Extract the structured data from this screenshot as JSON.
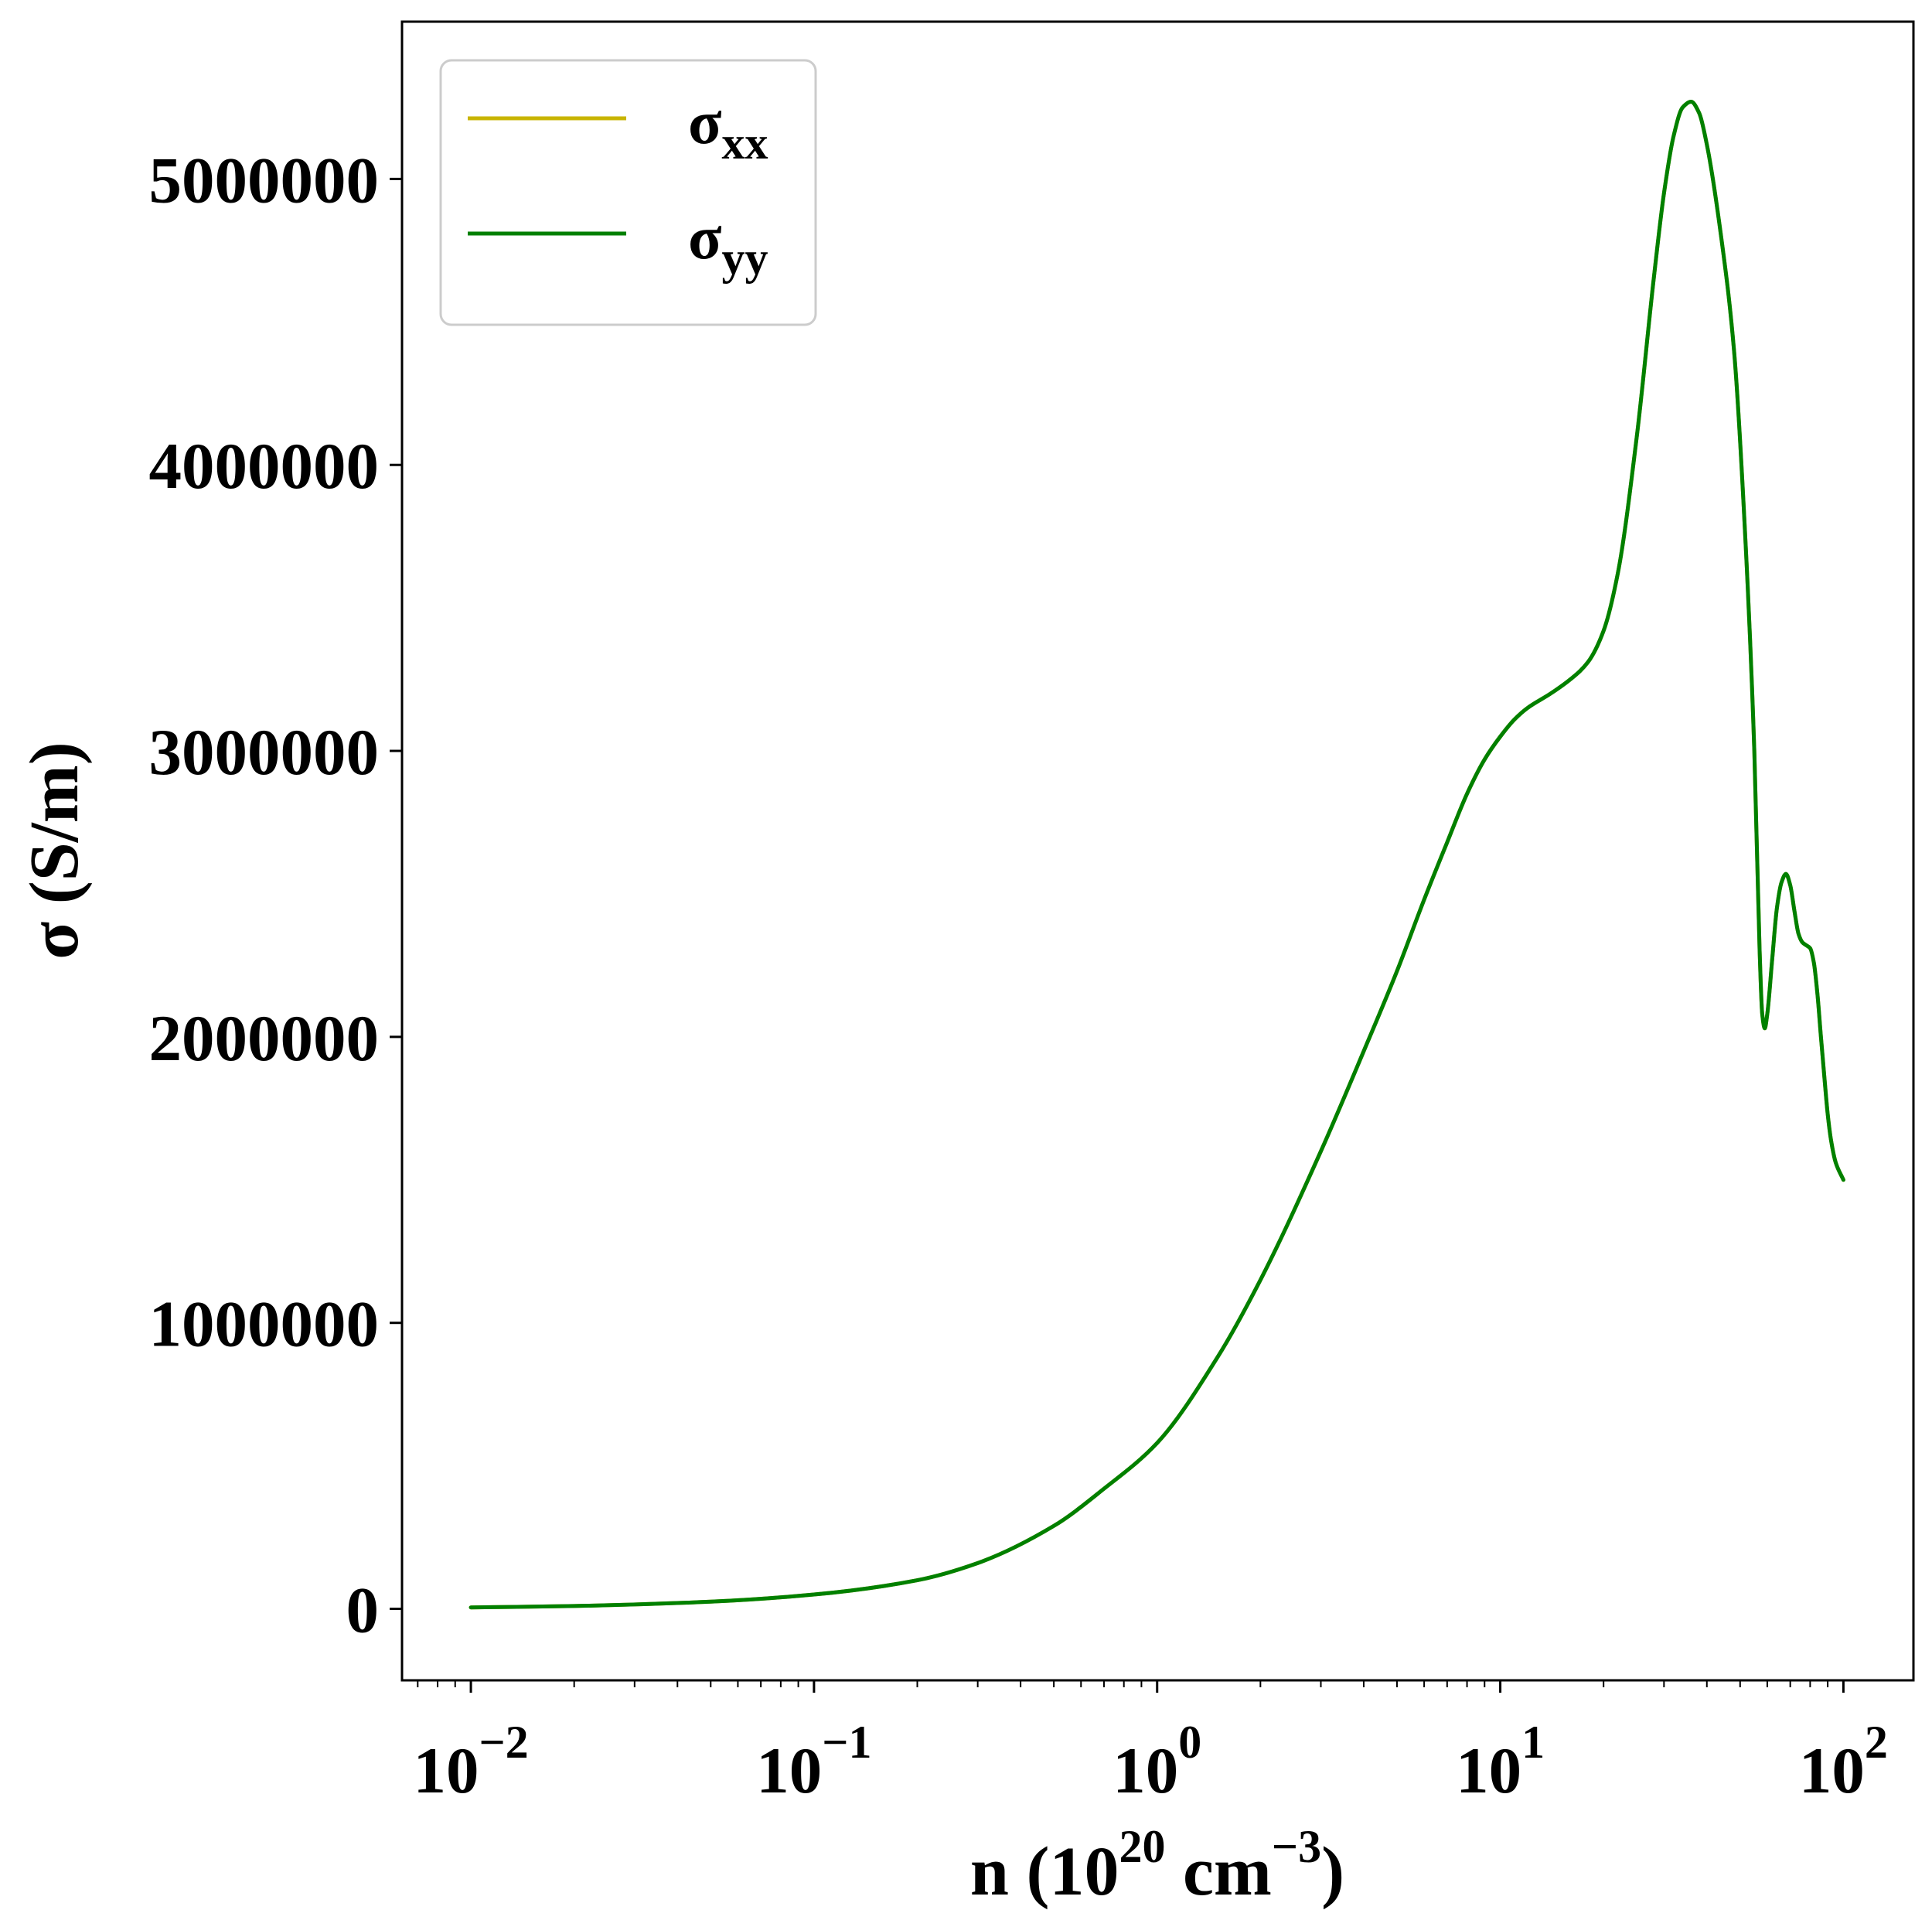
{
  "chart_data": {
    "type": "line",
    "xscale": "log",
    "xlim": [
      0.0063,
      160
    ],
    "ylim": [
      -250000,
      5550000
    ],
    "xlabel": {
      "base": "n (10",
      "sup1": "20",
      "mid": " cm",
      "sup2": "−3",
      "end": ")"
    },
    "ylabel": "σ (S/m)",
    "x_ticks": [
      {
        "value": 0.01,
        "base": "10",
        "exp": "−2"
      },
      {
        "value": 0.1,
        "base": "10",
        "exp": "−1"
      },
      {
        "value": 1,
        "base": "10",
        "exp": "0"
      },
      {
        "value": 10,
        "base": "10",
        "exp": "1"
      },
      {
        "value": 100,
        "base": "10",
        "exp": "2"
      }
    ],
    "y_ticks": [
      {
        "value": 0,
        "label": "0"
      },
      {
        "value": 1000000,
        "label": "1000000"
      },
      {
        "value": 2000000,
        "label": "2000000"
      },
      {
        "value": 3000000,
        "label": "3000000"
      },
      {
        "value": 4000000,
        "label": "4000000"
      },
      {
        "value": 5000000,
        "label": "5000000"
      }
    ],
    "legend": {
      "placement": "top-left",
      "entries": [
        {
          "symbol": "σ",
          "sub": "xx",
          "color": "#c8b400"
        },
        {
          "symbol": "σ",
          "sub": "yy",
          "color": "#008000"
        }
      ]
    },
    "grid": false,
    "series": [
      {
        "name": "σxx",
        "color": "#c8b400",
        "x": [
          0.01,
          0.02,
          0.05,
          0.1,
          0.2,
          0.3,
          0.5,
          0.7,
          1.0,
          1.5,
          2.0,
          3.0,
          4.0,
          5.0,
          6.0,
          7.0,
          8.0,
          9.0,
          10.0,
          11.0,
          12.0,
          14.0,
          16.0,
          18.0,
          20.0,
          22.0,
          25.0,
          28.0,
          30.0,
          32.0,
          34.0,
          36.0,
          38.0,
          40.0,
          44.0,
          48.0,
          52.0,
          55.0,
          57.0,
          58.0,
          59.0,
          60.0,
          62.0,
          64.0,
          66.0,
          68.0,
          70.0,
          72.0,
          74.0,
          76.0,
          78.0,
          80.0,
          82.0,
          84.0,
          86.0,
          88.0,
          90.0,
          92.0,
          95.0,
          100.0
        ],
        "y": [
          5000,
          10000,
          25000,
          50000,
          100000,
          160000,
          290000,
          420000,
          580000,
          880000,
          1150000,
          1600000,
          1950000,
          2230000,
          2480000,
          2680000,
          2850000,
          2970000,
          3050000,
          3110000,
          3150000,
          3200000,
          3250000,
          3310000,
          3420000,
          3620000,
          4100000,
          4650000,
          4950000,
          5150000,
          5250000,
          5270000,
          5230000,
          5120000,
          4800000,
          4400000,
          3700000,
          3000000,
          2300000,
          2080000,
          2030000,
          2080000,
          2270000,
          2450000,
          2540000,
          2570000,
          2530000,
          2440000,
          2360000,
          2330000,
          2320000,
          2310000,
          2260000,
          2150000,
          2000000,
          1860000,
          1730000,
          1640000,
          1560000,
          1500000
        ]
      },
      {
        "name": "σyy",
        "color": "#008000",
        "x": [
          0.01,
          0.02,
          0.05,
          0.1,
          0.2,
          0.3,
          0.5,
          0.7,
          1.0,
          1.5,
          2.0,
          3.0,
          4.0,
          5.0,
          6.0,
          7.0,
          8.0,
          9.0,
          10.0,
          11.0,
          12.0,
          14.0,
          16.0,
          18.0,
          20.0,
          22.0,
          25.0,
          28.0,
          30.0,
          32.0,
          34.0,
          36.0,
          38.0,
          40.0,
          44.0,
          48.0,
          52.0,
          55.0,
          57.0,
          58.0,
          59.0,
          60.0,
          62.0,
          64.0,
          66.0,
          68.0,
          70.0,
          72.0,
          74.0,
          76.0,
          78.0,
          80.0,
          82.0,
          84.0,
          86.0,
          88.0,
          90.0,
          92.0,
          95.0,
          100.0
        ],
        "y": [
          5000,
          10000,
          25000,
          50000,
          100000,
          160000,
          290000,
          420000,
          580000,
          880000,
          1150000,
          1600000,
          1950000,
          2230000,
          2480000,
          2680000,
          2850000,
          2970000,
          3050000,
          3110000,
          3150000,
          3200000,
          3250000,
          3310000,
          3420000,
          3620000,
          4100000,
          4650000,
          4950000,
          5150000,
          5250000,
          5270000,
          5230000,
          5120000,
          4800000,
          4400000,
          3700000,
          3000000,
          2300000,
          2080000,
          2030000,
          2080000,
          2270000,
          2450000,
          2540000,
          2570000,
          2530000,
          2440000,
          2360000,
          2330000,
          2320000,
          2310000,
          2260000,
          2150000,
          2000000,
          1860000,
          1730000,
          1640000,
          1560000,
          1500000
        ]
      }
    ]
  }
}
